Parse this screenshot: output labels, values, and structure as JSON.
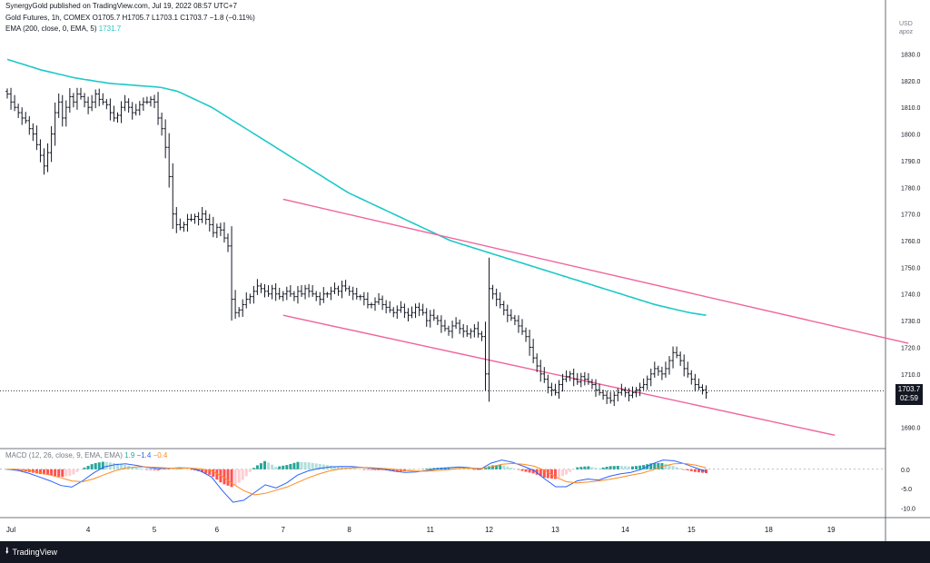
{
  "header": {
    "publisher": "SynergyGold published on TradingView.com, Jul 19, 2022 08:57 UTC+7",
    "symbol": "Gold Futures, 1h, COMEX",
    "ohlc": {
      "o": "O1705.7",
      "h": "H1705.7",
      "l": "L1703.1",
      "c": "C1703.7",
      "chg": "−1.8 (−0.11%)"
    },
    "ema_label": "EMA (200, close, 0, EMA, 5)",
    "ema_value": "1731.7",
    "macd_label": "MACD (12, 26, close, 9, EMA, EMA)",
    "macd_v1": "1.9",
    "macd_v2": "−1.4",
    "macd_v3": "−0.4"
  },
  "axis_top": {
    "currency": "USD",
    "mode": "apoz"
  },
  "current_price": {
    "value": "1703.7",
    "countdown": "02:59"
  },
  "footer": {
    "brand": "TradingView"
  },
  "colors": {
    "up": "#131722",
    "ema": "#1ec8c8",
    "channel": "#f0649b",
    "macd_line": "#2962ff",
    "signal_line": "#ff8a1e",
    "hist_pos": "#26a69a",
    "hist_pos_light": "#b2dfdb",
    "hist_neg": "#ff5252",
    "hist_neg_light": "#ffcdd2"
  },
  "chart_data": [
    {
      "type": "candlestick",
      "ylim": [
        1682,
        1838
      ],
      "yticks": [
        1690.0,
        1700.0,
        1710.0,
        1720.0,
        1730.0,
        1740.0,
        1750.0,
        1760.0,
        1770.0,
        1780.0,
        1790.0,
        1800.0,
        1810.0,
        1820.0,
        1830.0
      ],
      "xticks": [
        {
          "label": "Jul",
          "i": 1
        },
        {
          "label": "4",
          "i": 22
        },
        {
          "label": "5",
          "i": 40
        },
        {
          "label": "6",
          "i": 57
        },
        {
          "label": "7",
          "i": 75
        },
        {
          "label": "8",
          "i": 93
        },
        {
          "label": "11",
          "i": 115
        },
        {
          "label": "12",
          "i": 131
        },
        {
          "label": "13",
          "i": 149
        },
        {
          "label": "14",
          "i": 168
        },
        {
          "label": "15",
          "i": 186
        },
        {
          "label": "18",
          "i": 207
        },
        {
          "label": "19",
          "i": 224
        }
      ],
      "close": [
        1815,
        1812,
        1810,
        1808,
        1806,
        1805,
        1802,
        1800,
        1796,
        1792,
        1788,
        1793,
        1800,
        1808,
        1812,
        1806,
        1810,
        1814,
        1812,
        1815,
        1814,
        1812,
        1810,
        1812,
        1815,
        1813,
        1812,
        1811,
        1808,
        1806,
        1807,
        1810,
        1812,
        1810,
        1808,
        1809,
        1811,
        1812,
        1812,
        1813,
        1812,
        1806,
        1802,
        1795,
        1784,
        1770,
        1766,
        1765,
        1766,
        1768,
        1768,
        1769,
        1768,
        1770,
        1768,
        1766,
        1763,
        1765,
        1764,
        1761,
        1758,
        1738,
        1733,
        1734,
        1736,
        1738,
        1739,
        1741,
        1743,
        1742,
        1741,
        1740,
        1742,
        1740,
        1739,
        1740,
        1741,
        1740,
        1739,
        1741,
        1740,
        1742,
        1741,
        1740,
        1739,
        1738,
        1740,
        1740,
        1741,
        1742,
        1741,
        1743,
        1742,
        1741,
        1740,
        1739,
        1739,
        1738,
        1736,
        1736,
        1737,
        1738,
        1736,
        1735,
        1734,
        1733,
        1734,
        1735,
        1733,
        1732,
        1733,
        1735,
        1734,
        1733,
        1730,
        1732,
        1731,
        1730,
        1728,
        1727,
        1726,
        1728,
        1729,
        1727,
        1726,
        1725,
        1726,
        1727,
        1725,
        1724,
        1710,
        1742,
        1740,
        1738,
        1736,
        1734,
        1732,
        1731,
        1730,
        1728,
        1726,
        1724,
        1720,
        1716,
        1713,
        1710,
        1708,
        1705,
        1704,
        1703,
        1706,
        1708,
        1709,
        1710,
        1708,
        1707,
        1709,
        1708,
        1707,
        1706,
        1704,
        1703,
        1702,
        1701,
        1700,
        1702,
        1703,
        1704,
        1703,
        1702,
        1703,
        1704,
        1705,
        1706,
        1708,
        1710,
        1712,
        1711,
        1710,
        1712,
        1715,
        1718,
        1717,
        1715,
        1712,
        1710,
        1708,
        1706,
        1705,
        1704,
        1703
      ],
      "ema": [
        1828,
        1826,
        1824,
        1822.5,
        1821,
        1820,
        1819,
        1818.5,
        1818,
        1817.5,
        1816,
        1813,
        1810,
        1806,
        1802,
        1798,
        1794,
        1790,
        1786,
        1782,
        1778,
        1775,
        1772,
        1769,
        1766,
        1763,
        1760,
        1758,
        1756,
        1754,
        1752,
        1750,
        1748,
        1746,
        1744,
        1742,
        1740,
        1738,
        1736,
        1734.5,
        1733,
        1732
      ],
      "channel_upper": [
        [
          75,
          1775.5
        ],
        [
          245,
          1721.5
        ]
      ],
      "channel_lower": [
        [
          75,
          1732
        ],
        [
          225,
          1687
        ]
      ],
      "current": 1703.7
    },
    {
      "type": "macd",
      "ylim": [
        -12,
        3
      ],
      "yticks": [
        0.0,
        -5.0,
        -10.0
      ],
      "macd_line": [
        0,
        -0.3,
        -1,
        -2,
        -3,
        -4.2,
        -4.6,
        -3,
        -1,
        0.6,
        1.2,
        1.4,
        1,
        0.5,
        0.2,
        0.2,
        0.4,
        0.3,
        -0.5,
        -2,
        -5.5,
        -8.5,
        -8,
        -6,
        -4,
        -4.8,
        -3.5,
        -1.5,
        -0.4,
        0.2,
        0.6,
        0.7,
        0.7,
        0.5,
        0.2,
        0,
        -0.5,
        -0.8,
        -0.7,
        -0.3,
        0.1,
        0.4,
        0.6,
        0.4,
        0,
        1.6,
        2.4,
        1.8,
        0.8,
        -0.3,
        -2.5,
        -4.5,
        -4.5,
        -3,
        -2.5,
        -2.8,
        -1.8,
        -1.2,
        -0.8,
        0,
        1.4,
        2.4,
        2.2,
        1.4,
        0.4,
        -0.6
      ],
      "signal_line": [
        0,
        0,
        -0.3,
        -0.8,
        -1.5,
        -2.2,
        -3,
        -3.2,
        -2.5,
        -1.4,
        -0.4,
        0.3,
        0.6,
        0.6,
        0.5,
        0.3,
        0.3,
        0.3,
        0.1,
        -0.4,
        -1.8,
        -3.8,
        -5.5,
        -6.6,
        -6.2,
        -5.4,
        -4.6,
        -3.4,
        -2.2,
        -1.2,
        -0.4,
        0.1,
        0.4,
        0.5,
        0.4,
        0.2,
        0,
        -0.3,
        -0.5,
        -0.5,
        -0.3,
        -0.1,
        0.2,
        0.3,
        0.2,
        0.6,
        1.3,
        1.5,
        1.3,
        0.8,
        -0.3,
        -2,
        -3.2,
        -3.5,
        -3.3,
        -3,
        -2.6,
        -2.1,
        -1.5,
        -1,
        -0.2,
        0.8,
        1.4,
        1.5,
        1.1,
        0.4
      ]
    }
  ]
}
